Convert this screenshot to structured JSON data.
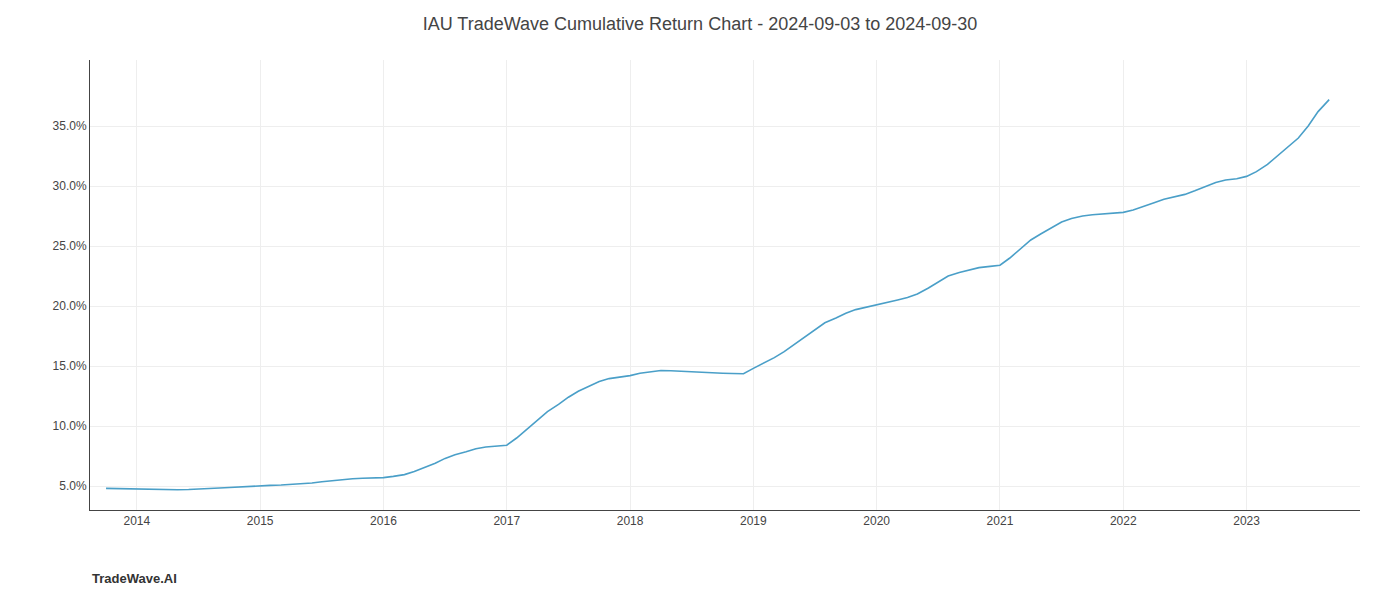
{
  "chart_data": {
    "type": "line",
    "title": "IAU TradeWave Cumulative Return Chart - 2024-09-03 to 2024-09-30",
    "annotations": [
      {
        "text": "TradeWave.AI"
      }
    ],
    "color": "#4a9fc8",
    "grid": true,
    "x": [
      2013.75,
      2013.83,
      2013.92,
      2014.0,
      2014.08,
      2014.17,
      2014.25,
      2014.33,
      2014.42,
      2014.5,
      2014.58,
      2014.67,
      2014.75,
      2014.83,
      2014.92,
      2015.0,
      2015.08,
      2015.17,
      2015.25,
      2015.33,
      2015.42,
      2015.5,
      2015.58,
      2015.67,
      2015.75,
      2015.83,
      2015.92,
      2016.0,
      2016.08,
      2016.17,
      2016.25,
      2016.33,
      2016.42,
      2016.5,
      2016.58,
      2016.67,
      2016.75,
      2016.83,
      2016.92,
      2017.0,
      2017.08,
      2017.17,
      2017.25,
      2017.33,
      2017.42,
      2017.5,
      2017.58,
      2017.67,
      2017.75,
      2017.83,
      2017.92,
      2018.0,
      2018.08,
      2018.17,
      2018.25,
      2018.33,
      2018.42,
      2018.5,
      2018.58,
      2018.67,
      2018.75,
      2018.83,
      2018.92,
      2019.0,
      2019.08,
      2019.17,
      2019.25,
      2019.33,
      2019.42,
      2019.5,
      2019.58,
      2019.67,
      2019.75,
      2019.83,
      2019.92,
      2020.0,
      2020.08,
      2020.17,
      2020.25,
      2020.33,
      2020.42,
      2020.5,
      2020.58,
      2020.67,
      2020.75,
      2020.83,
      2020.92,
      2021.0,
      2021.08,
      2021.17,
      2021.25,
      2021.33,
      2021.42,
      2021.5,
      2021.58,
      2021.67,
      2021.75,
      2021.83,
      2021.92,
      2022.0,
      2022.08,
      2022.17,
      2022.25,
      2022.33,
      2022.42,
      2022.5,
      2022.58,
      2022.67,
      2022.75,
      2022.83,
      2022.92,
      2023.0,
      2023.08,
      2023.17,
      2023.25,
      2023.33,
      2023.42,
      2023.5,
      2023.58,
      2023.67
    ],
    "values": [
      4.8,
      4.78,
      4.75,
      4.73,
      4.72,
      4.7,
      4.68,
      4.69,
      4.71,
      4.73,
      4.78,
      4.83,
      4.88,
      4.93,
      4.98,
      5.02,
      5.05,
      5.08,
      5.12,
      5.18,
      5.25,
      5.35,
      5.45,
      5.55,
      5.6,
      5.65,
      5.68,
      5.7,
      5.8,
      5.95,
      6.2,
      6.5,
      6.9,
      7.3,
      7.6,
      7.85,
      8.1,
      8.25,
      8.35,
      8.4,
      9.0,
      9.8,
      10.5,
      11.2,
      11.8,
      12.4,
      12.9,
      13.3,
      13.7,
      13.95,
      14.1,
      14.2,
      14.4,
      14.55,
      14.62,
      14.6,
      14.55,
      14.5,
      14.45,
      14.42,
      14.4,
      14.38,
      14.35,
      14.8,
      15.2,
      15.7,
      16.2,
      16.8,
      17.4,
      18.0,
      18.6,
      19.0,
      19.4,
      19.7,
      19.9,
      20.1,
      20.3,
      20.5,
      20.7,
      21.0,
      21.5,
      22.0,
      22.5,
      22.8,
      23.0,
      23.2,
      23.3,
      23.4,
      24.0,
      24.8,
      25.5,
      26.0,
      26.5,
      27.0,
      27.3,
      27.5,
      27.6,
      27.65,
      27.7,
      27.8,
      28.0,
      28.3,
      28.6,
      28.9,
      29.1,
      29.3,
      29.6,
      30.0,
      30.3,
      30.5,
      30.6,
      30.8,
      31.2,
      31.8,
      32.5,
      33.2,
      34.0,
      35.0,
      36.2,
      37.2
    ],
    "xlim": [
      2013.62,
      2023.92
    ],
    "xticks": [
      2014,
      2015,
      2016,
      2017,
      2018,
      2019,
      2020,
      2021,
      2022,
      2023
    ],
    "ylim": [
      3.0,
      40.5
    ],
    "yticks": [
      {
        "value": 5.0,
        "label": "5.0%"
      },
      {
        "value": 10.0,
        "label": "10.0%"
      },
      {
        "value": 15.0,
        "label": "15.0%"
      },
      {
        "value": 20.0,
        "label": "20.0%"
      },
      {
        "value": 25.0,
        "label": "25.0%"
      },
      {
        "value": 30.0,
        "label": "30.0%"
      },
      {
        "value": 35.0,
        "label": "35.0%"
      }
    ]
  }
}
